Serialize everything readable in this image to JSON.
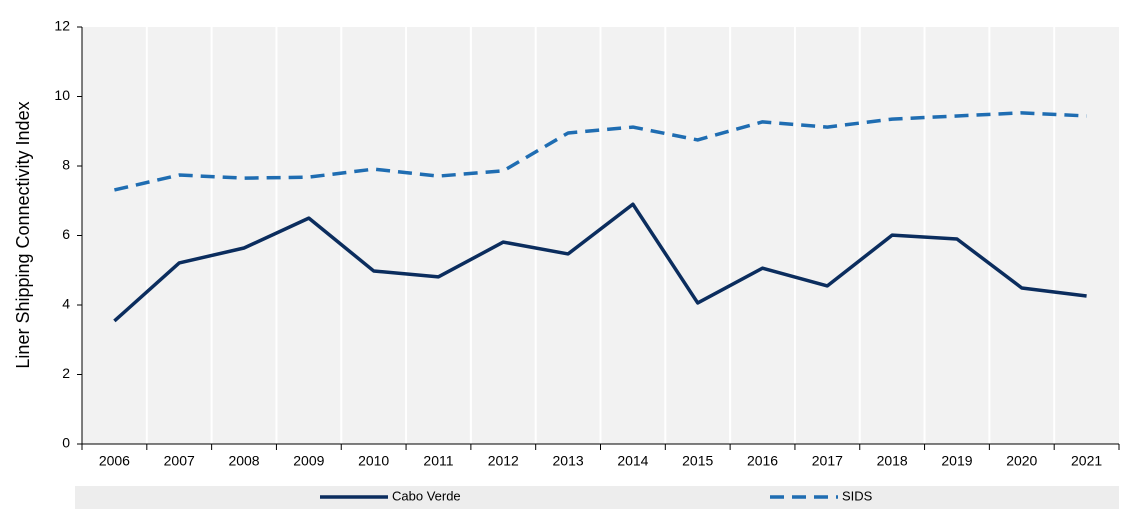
{
  "chart_data": {
    "type": "line",
    "ylabel": "Liner Shipping Connectivity Index",
    "categories": [
      "2006",
      "2007",
      "2008",
      "2009",
      "2010",
      "2011",
      "2012",
      "2013",
      "2014",
      "2015",
      "2016",
      "2017",
      "2018",
      "2019",
      "2020",
      "2021"
    ],
    "series": [
      {
        "name": "Cabo Verde",
        "color": "#0b2d5e",
        "dash": "solid",
        "values": [
          3.54,
          5.21,
          5.64,
          6.5,
          4.98,
          4.81,
          5.81,
          5.47,
          6.9,
          4.06,
          5.06,
          4.55,
          6.01,
          5.9,
          4.49,
          4.26
        ]
      },
      {
        "name": "SIDS",
        "color": "#1f6db2",
        "dash": "dashed",
        "values": [
          7.31,
          7.74,
          7.65,
          7.68,
          7.91,
          7.71,
          7.86,
          8.95,
          9.12,
          8.75,
          9.27,
          9.12,
          9.35,
          9.44,
          9.53,
          9.44
        ]
      }
    ],
    "ylim": [
      0,
      12
    ],
    "yticks": [
      0,
      2,
      4,
      6,
      8,
      10,
      12
    ],
    "grid": "x",
    "legend": "bottom"
  }
}
